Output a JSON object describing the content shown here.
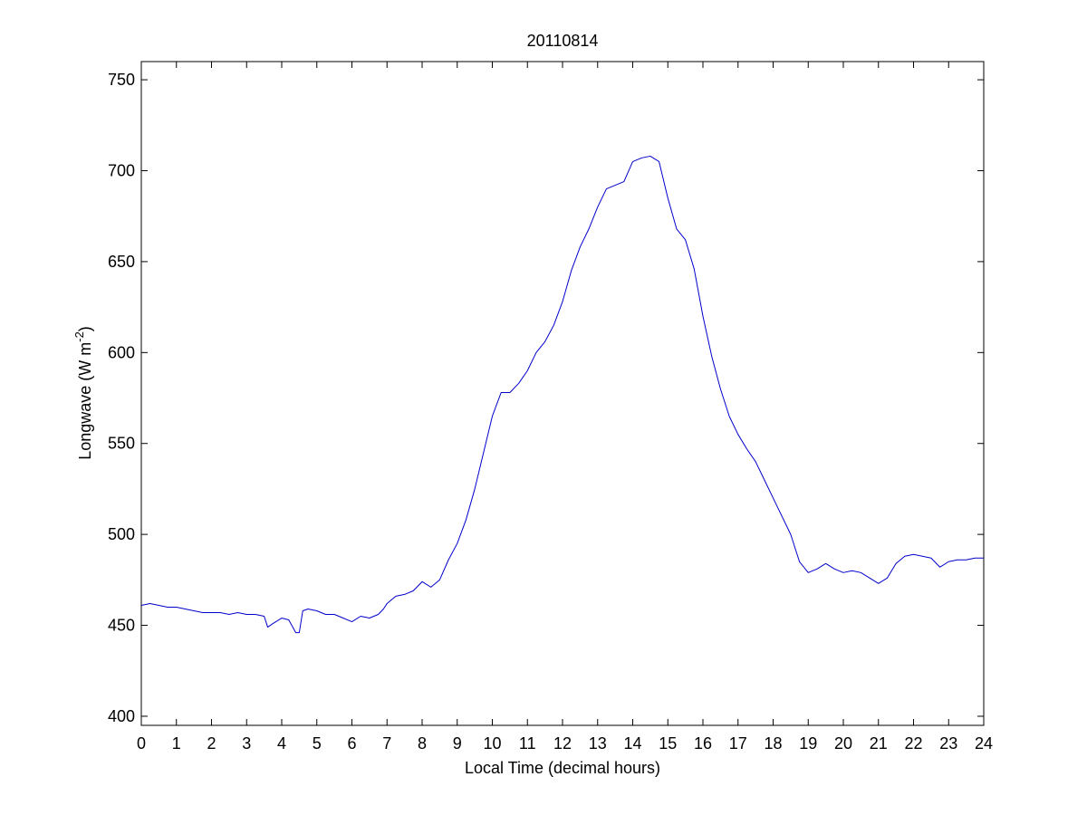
{
  "chart_data": {
    "type": "line",
    "title": "20110814",
    "xlabel": "Local Time (decimal hours)",
    "ylabel": {
      "main": "Longwave (W m",
      "superscript": "-2",
      "close": ")"
    },
    "xlim": [
      0,
      24
    ],
    "ylim": [
      395,
      760
    ],
    "x_ticks": [
      0,
      1,
      2,
      3,
      4,
      5,
      6,
      7,
      8,
      9,
      10,
      11,
      12,
      13,
      14,
      15,
      16,
      17,
      18,
      19,
      20,
      21,
      22,
      23,
      24
    ],
    "y_ticks": [
      400,
      450,
      500,
      550,
      600,
      650,
      700,
      750
    ],
    "grid": false,
    "legend": "none",
    "series": [
      {
        "color": "#0000cc",
        "x": [
          0,
          0.25,
          0.5,
          0.75,
          1,
          1.25,
          1.5,
          1.75,
          2,
          2.25,
          2.5,
          2.75,
          3,
          3.25,
          3.5,
          3.6,
          3.75,
          4,
          4.2,
          4.4,
          4.5,
          4.6,
          4.75,
          5,
          5.25,
          5.5,
          5.75,
          6,
          6.25,
          6.5,
          6.75,
          6.9,
          7,
          7.25,
          7.5,
          7.75,
          8,
          8.25,
          8.5,
          8.75,
          9,
          9.25,
          9.5,
          9.75,
          10,
          10.25,
          10.5,
          10.75,
          11,
          11.25,
          11.5,
          11.75,
          12,
          12.25,
          12.5,
          12.75,
          13,
          13.25,
          13.5,
          13.75,
          14,
          14.25,
          14.5,
          14.75,
          15,
          15.25,
          15.5,
          15.75,
          16,
          16.25,
          16.5,
          16.75,
          17,
          17.25,
          17.5,
          17.75,
          18,
          18.25,
          18.5,
          18.75,
          19,
          19.25,
          19.5,
          19.75,
          20,
          20.25,
          20.5,
          20.75,
          21,
          21.25,
          21.5,
          21.75,
          22,
          22.25,
          22.5,
          22.75,
          23,
          23.25,
          23.5,
          23.75,
          24
        ],
        "values": [
          461,
          462,
          461,
          460,
          460,
          459,
          458,
          457,
          457,
          457,
          456,
          457,
          456,
          456,
          455,
          449,
          451,
          454,
          453,
          446,
          446,
          458,
          459,
          458,
          456,
          456,
          454,
          452,
          455,
          454,
          456,
          459,
          462,
          466,
          467,
          469,
          474,
          471,
          475,
          486,
          495,
          508,
          525,
          545,
          565,
          578,
          578,
          583,
          590,
          600,
          606,
          615,
          628,
          645,
          658,
          668,
          680,
          690,
          692,
          694,
          705,
          707,
          708,
          705,
          685,
          668,
          662,
          646,
          620,
          598,
          580,
          565,
          555,
          547,
          540,
          530,
          520,
          510,
          500,
          485,
          479,
          481,
          484,
          481,
          479,
          480,
          479,
          476,
          473,
          476,
          484,
          488,
          489,
          488,
          487,
          482,
          485,
          486,
          486,
          487,
          487
        ]
      }
    ]
  }
}
